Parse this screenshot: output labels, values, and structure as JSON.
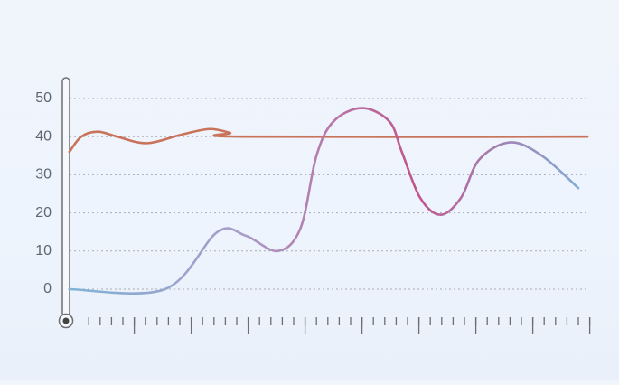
{
  "chart_data": {
    "type": "line",
    "ylim": [
      -8,
      55
    ],
    "yticks": [
      0,
      10,
      20,
      30,
      40,
      50
    ],
    "grid": true,
    "xlim": [
      0,
      46
    ],
    "xticks": [
      2,
      3,
      4,
      5,
      6,
      7,
      8,
      9,
      10,
      11,
      12,
      13,
      14,
      15,
      16,
      17,
      18,
      19,
      20,
      21,
      22,
      23,
      24,
      25,
      26,
      27,
      28,
      29,
      30,
      31,
      32,
      33,
      34,
      35,
      36,
      37,
      38,
      39,
      40,
      41,
      42,
      43,
      44,
      45,
      46
    ],
    "xticks_major": [
      6,
      11,
      16,
      21,
      26,
      31,
      36,
      41,
      46
    ],
    "series": [
      {
        "color": "#c8735a",
        "x": [
          0.3,
          1.35,
          2.8,
          4.5,
          7.1,
          10.1,
          12.6,
          14.4,
          15.5,
          45.8
        ],
        "values": [
          36,
          40,
          41.3,
          40,
          38.3,
          40.5,
          42,
          41,
          40,
          40
        ]
      },
      {
        "color": [
          "#7fb3d6",
          "#a99cc6",
          "#c2548c",
          "#7fb0d8"
        ],
        "x": [
          0.3,
          8.7,
          13.3,
          15.8,
          18.6,
          20.6,
          22,
          23.5,
          26,
          28.4,
          29.5,
          31.1,
          32.9,
          34.7,
          36.3,
          39,
          41.8,
          45
        ],
        "values": [
          0,
          0,
          15,
          14,
          10,
          16,
          35,
          44,
          47.5,
          44,
          36,
          24,
          19.5,
          24,
          34,
          38.5,
          35,
          26.5
        ]
      }
    ]
  }
}
